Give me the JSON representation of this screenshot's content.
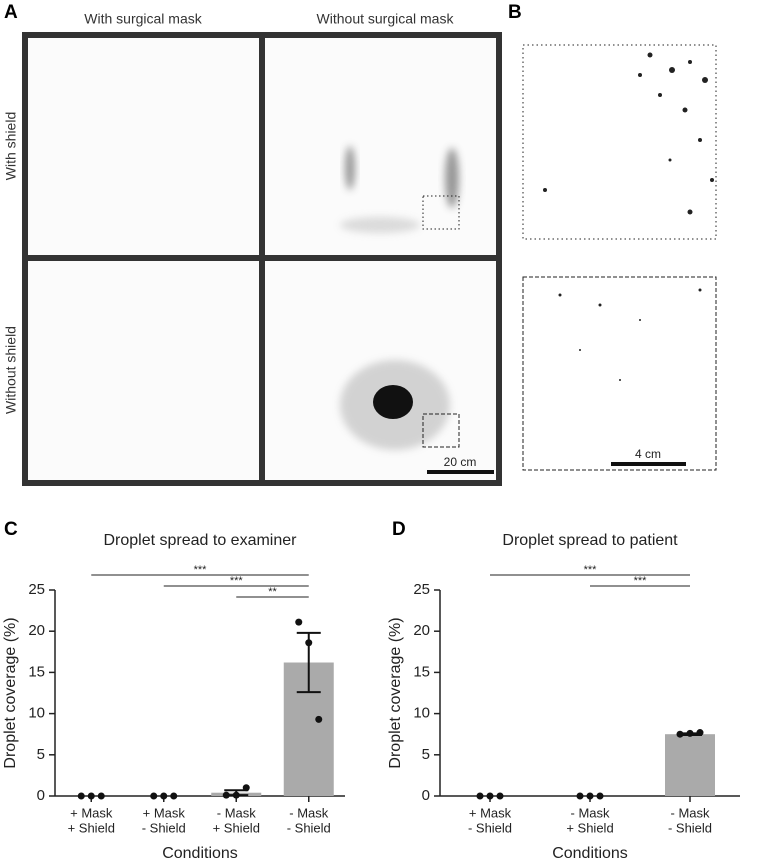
{
  "figure": {
    "panel_labels": [
      "A",
      "B",
      "C",
      "D"
    ],
    "column_labels": [
      "With surgical mask",
      "Without surgical mask"
    ],
    "row_labels": [
      "With shield",
      "Without shield"
    ],
    "scale_bars": [
      "20 cm",
      "4 cm"
    ]
  },
  "chart_data": [
    {
      "type": "bar",
      "title": "Droplet spread to examiner",
      "xlabel": "Conditions",
      "ylabel": "Droplet coverage (%)",
      "categories": [
        [
          "+ Mask",
          "+ Shield"
        ],
        [
          "+ Mask",
          "- Shield"
        ],
        [
          "- Mask",
          "+ Shield"
        ],
        [
          "- Mask",
          "- Shield"
        ]
      ],
      "values": [
        0,
        0,
        0.4,
        16.2
      ],
      "errors": [
        0,
        0,
        0.3,
        3.6
      ],
      "points": [
        [
          0,
          0,
          0
        ],
        [
          0,
          0,
          0
        ],
        [
          0.1,
          0.1,
          1.0
        ],
        [
          21.1,
          18.6,
          9.3
        ]
      ],
      "ylim": [
        0,
        25
      ],
      "yticks": [
        0,
        5,
        10,
        15,
        20,
        25
      ],
      "color": "#aaaaaa",
      "comparisons": [
        {
          "groups": [
            0,
            3
          ],
          "label": "***"
        },
        {
          "groups": [
            1,
            3
          ],
          "label": "***"
        },
        {
          "groups": [
            2,
            3
          ],
          "label": "**"
        }
      ]
    },
    {
      "type": "bar",
      "title": "Droplet spread to patient",
      "xlabel": "Conditions",
      "ylabel": "Droplet coverage (%)",
      "categories": [
        [
          "+ Mask",
          "- Shield"
        ],
        [
          "- Mask",
          "+ Shield"
        ],
        [
          "- Mask",
          "- Shield"
        ]
      ],
      "values": [
        0,
        0,
        7.5
      ],
      "errors": [
        0,
        0,
        0.1
      ],
      "points": [
        [
          0,
          0,
          0
        ],
        [
          0,
          0,
          0
        ],
        [
          7.5,
          7.6,
          7.7
        ]
      ],
      "ylim": [
        0,
        25
      ],
      "yticks": [
        0,
        5,
        10,
        15,
        20,
        25
      ],
      "color": "#aaaaaa",
      "comparisons": [
        {
          "groups": [
            0,
            2
          ],
          "label": "***"
        },
        {
          "groups": [
            1,
            2
          ],
          "label": "***"
        }
      ]
    }
  ]
}
